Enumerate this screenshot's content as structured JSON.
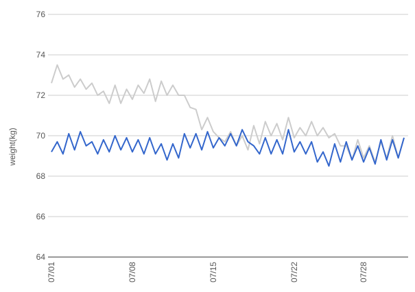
{
  "chart_data": {
    "type": "line",
    "y_label": "weight(kg)",
    "categories": [
      "07/01",
      null,
      null,
      null,
      null,
      null,
      null,
      null,
      null,
      null,
      null,
      null,
      null,
      null,
      "07/08",
      null,
      null,
      null,
      null,
      null,
      null,
      null,
      null,
      null,
      null,
      null,
      null,
      null,
      "07/15",
      null,
      null,
      null,
      null,
      null,
      null,
      null,
      null,
      null,
      null,
      null,
      null,
      null,
      "07/22",
      null,
      null,
      null,
      null,
      null,
      null,
      null,
      null,
      null,
      null,
      null,
      "07/28",
      null,
      null,
      null,
      null,
      null,
      null,
      null
    ],
    "series": [
      {
        "color": "#cccccc",
        "values": [
          72.6,
          73.5,
          72.8,
          73.0,
          72.4,
          72.8,
          72.3,
          72.6,
          72.0,
          72.2,
          71.6,
          72.5,
          71.6,
          72.3,
          71.8,
          72.5,
          72.1,
          72.8,
          71.7,
          72.7,
          72.0,
          72.5,
          72.0,
          72.0,
          71.4,
          71.3,
          70.3,
          70.9,
          70.2,
          69.9,
          69.7,
          70.2,
          69.5,
          70.0,
          69.3,
          70.5,
          69.6,
          70.7,
          70.0,
          70.6,
          69.8,
          70.9,
          69.9,
          70.4,
          70.0,
          70.7,
          70.0,
          70.4,
          69.9,
          70.1,
          69.5,
          69.5,
          68.8,
          69.8,
          68.9,
          69.5,
          68.7,
          69.7,
          68.9,
          70.0,
          68.9,
          69.9
        ]
      },
      {
        "color": "#3366cc",
        "values": [
          69.2,
          69.7,
          69.1,
          70.1,
          69.3,
          70.2,
          69.5,
          69.7,
          69.1,
          69.8,
          69.2,
          70.0,
          69.3,
          69.9,
          69.2,
          69.8,
          69.1,
          69.9,
          69.1,
          69.6,
          68.8,
          69.6,
          68.9,
          70.1,
          69.4,
          70.1,
          69.3,
          70.2,
          69.4,
          69.9,
          69.5,
          70.1,
          69.5,
          70.3,
          69.7,
          69.5,
          69.1,
          69.9,
          69.1,
          69.8,
          69.1,
          70.3,
          69.2,
          69.7,
          69.1,
          69.7,
          68.7,
          69.2,
          68.5,
          69.6,
          68.7,
          69.7,
          68.8,
          69.5,
          68.7,
          69.4,
          68.6,
          69.8,
          68.8,
          69.8,
          68.9,
          69.9
        ]
      }
    ],
    "ylim": [
      64,
      76
    ],
    "yticks": [
      64,
      66,
      68,
      70,
      72,
      74,
      76
    ],
    "grid": true
  }
}
